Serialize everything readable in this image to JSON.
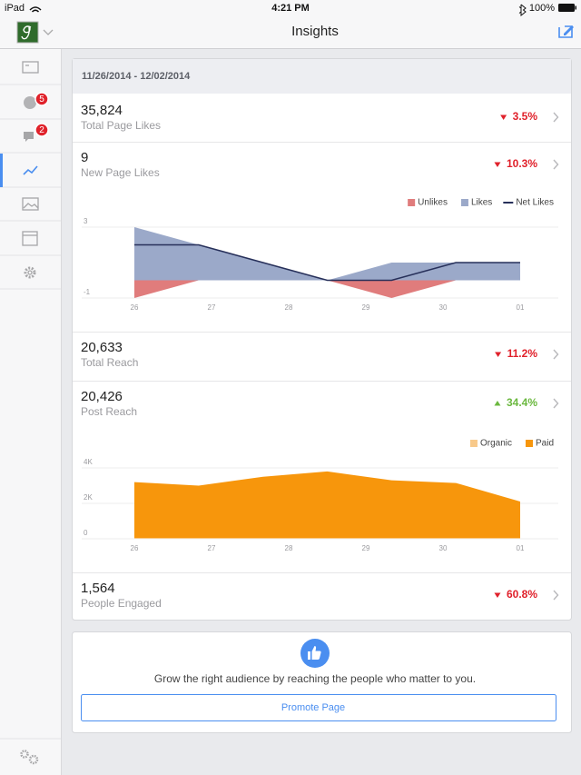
{
  "status_bar": {
    "carrier": "iPad",
    "time": "4:21 PM",
    "battery": "100%"
  },
  "nav": {
    "title": "Insights"
  },
  "sidebar": {
    "badges": [
      5,
      2
    ]
  },
  "date_range": "11/26/2014 - 12/02/2014",
  "metrics": [
    {
      "value": "35,824",
      "label": "Total Page Likes",
      "change": "3.5%",
      "direction": "down"
    },
    {
      "value": "9",
      "label": "New Page Likes",
      "change": "10.3%",
      "direction": "down"
    },
    {
      "value": "20,633",
      "label": "Total Reach",
      "change": "11.2%",
      "direction": "down"
    },
    {
      "value": "20,426",
      "label": "Post Reach",
      "change": "34.4%",
      "direction": "up"
    },
    {
      "value": "1,564",
      "label": "People Engaged",
      "change": "60.8%",
      "direction": "down"
    }
  ],
  "chart_data": [
    {
      "type": "area",
      "stacked": false,
      "x_labels": [
        "26",
        "27",
        "28",
        "29",
        "30",
        "01"
      ],
      "series": [
        {
          "name": "Unlikes",
          "color": "#e07c7c",
          "mark": "area",
          "values": [
            -1,
            0,
            0,
            0,
            -1,
            0,
            0
          ]
        },
        {
          "name": "Likes",
          "color": "#9ba9c9",
          "mark": "area",
          "values": [
            3,
            2,
            1,
            0,
            1,
            1,
            1
          ]
        },
        {
          "name": "Net Likes",
          "color": "#27305a",
          "mark": "line",
          "values": [
            2,
            2,
            1,
            0,
            0,
            1,
            1
          ]
        }
      ],
      "ylim": [
        -1,
        3
      ],
      "yticks": [
        -1,
        3
      ],
      "grid": true
    },
    {
      "type": "area",
      "stacked": true,
      "x_labels": [
        "26",
        "27",
        "28",
        "29",
        "30",
        "01"
      ],
      "series": [
        {
          "name": "Organic",
          "color": "#f8c98a",
          "mark": "area",
          "values": [
            50,
            50,
            50,
            50,
            50,
            50,
            50
          ]
        },
        {
          "name": "Paid",
          "color": "#f7960c",
          "mark": "area",
          "values": [
            3150,
            2950,
            3450,
            3750,
            3250,
            3100,
            2050
          ]
        }
      ],
      "ylim": [
        0,
        4000
      ],
      "yticks": [
        0,
        {
          "value": 2000,
          "label": "2K"
        },
        {
          "value": 4000,
          "label": "4K"
        }
      ],
      "grid": true
    }
  ],
  "promo": {
    "text": "Grow the right audience by reaching the people who matter to you.",
    "button": "Promote Page"
  }
}
